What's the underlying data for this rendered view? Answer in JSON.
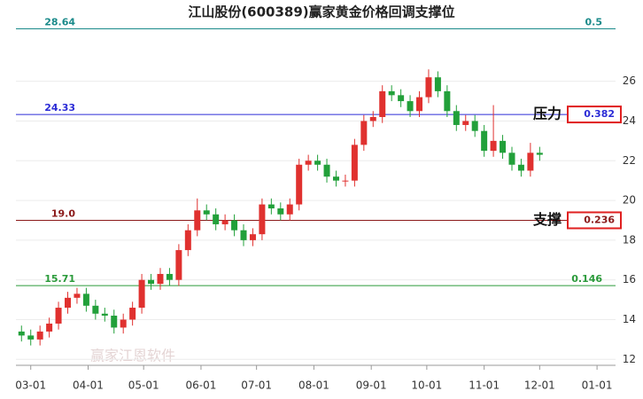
{
  "chart_data": {
    "type": "candlestick",
    "title": "江山股份(600389)赢家黄金价格回调支撑位",
    "watermark": "赢家江恩软件",
    "xlim": [
      -8,
      316
    ],
    "xticks": [
      {
        "value": 0,
        "label": "03-01"
      },
      {
        "value": 31,
        "label": "04-01"
      },
      {
        "value": 61,
        "label": "05-01"
      },
      {
        "value": 92,
        "label": "06-01"
      },
      {
        "value": 122,
        "label": "07-01"
      },
      {
        "value": 153,
        "label": "08-01"
      },
      {
        "value": 184,
        "label": "09-01"
      },
      {
        "value": 214,
        "label": "10-01"
      },
      {
        "value": 245,
        "label": "11-01"
      },
      {
        "value": 275,
        "label": "12-01"
      },
      {
        "value": 306,
        "label": "01-01"
      }
    ],
    "ylim": [
      11.7,
      29.2
    ],
    "yticks": [
      12,
      14,
      16,
      18,
      20,
      22,
      24,
      26
    ],
    "grid": true,
    "up_color": "#e0312f",
    "down_color": "#22a03a",
    "x": [
      -5,
      0,
      5,
      10,
      15,
      20,
      25,
      30,
      35,
      40,
      45,
      50,
      55,
      60,
      65,
      70,
      75,
      80,
      85,
      90,
      95,
      100,
      105,
      110,
      115,
      120,
      125,
      130,
      135,
      140,
      145,
      150,
      155,
      160,
      165,
      170,
      175,
      180,
      185,
      190,
      195,
      200,
      205,
      210,
      215,
      220,
      225,
      230,
      235,
      240,
      245,
      250,
      255,
      260,
      265,
      270,
      275
    ],
    "open": [
      13.4,
      13.2,
      13.0,
      13.4,
      13.8,
      14.6,
      15.1,
      15.3,
      14.7,
      14.3,
      14.2,
      13.6,
      14.0,
      14.6,
      16.0,
      15.8,
      16.3,
      16.0,
      17.5,
      18.5,
      19.5,
      19.3,
      18.8,
      19.0,
      18.5,
      18.0,
      18.3,
      19.8,
      19.6,
      19.3,
      19.8,
      21.8,
      22.0,
      21.8,
      21.2,
      21.0,
      21.0,
      22.8,
      24.0,
      24.2,
      25.5,
      25.3,
      25.0,
      24.5,
      25.2,
      26.2,
      25.5,
      24.5,
      23.8,
      24.0,
      23.5,
      22.5,
      23.0,
      22.4,
      21.8,
      21.5,
      22.4
    ],
    "high": [
      13.7,
      13.5,
      13.7,
      14.1,
      14.9,
      15.4,
      15.6,
      15.6,
      15.0,
      14.6,
      14.5,
      14.3,
      14.9,
      16.3,
      16.3,
      16.6,
      16.6,
      17.8,
      18.8,
      20.1,
      19.8,
      19.6,
      19.3,
      19.3,
      18.8,
      18.6,
      20.1,
      20.1,
      19.9,
      20.1,
      22.1,
      22.3,
      22.3,
      22.1,
      21.5,
      21.3,
      23.1,
      24.3,
      24.5,
      25.8,
      25.8,
      25.6,
      25.3,
      25.5,
      26.6,
      26.5,
      25.8,
      24.8,
      24.3,
      24.3,
      23.8,
      24.8,
      23.3,
      22.7,
      22.1,
      22.9,
      22.7
    ],
    "low": [
      12.9,
      12.7,
      12.7,
      13.1,
      13.5,
      14.3,
      14.8,
      14.4,
      14.0,
      13.9,
      13.3,
      13.3,
      13.7,
      14.3,
      15.5,
      15.5,
      15.7,
      15.7,
      17.2,
      18.2,
      19.0,
      18.5,
      18.5,
      18.2,
      17.7,
      17.7,
      18.0,
      19.3,
      19.0,
      19.0,
      19.5,
      21.5,
      21.5,
      20.9,
      20.7,
      20.7,
      20.7,
      22.5,
      23.7,
      23.9,
      25.0,
      24.7,
      24.2,
      24.2,
      24.9,
      25.2,
      24.2,
      23.5,
      23.5,
      23.2,
      22.2,
      22.2,
      22.1,
      21.5,
      21.2,
      21.2,
      22.0
    ],
    "close": [
      13.2,
      13.0,
      13.4,
      13.8,
      14.6,
      15.1,
      15.3,
      14.7,
      14.3,
      14.2,
      13.6,
      14.0,
      14.6,
      16.0,
      15.8,
      16.3,
      16.0,
      17.5,
      18.5,
      19.5,
      19.3,
      18.8,
      19.0,
      18.5,
      18.0,
      18.3,
      19.8,
      19.6,
      19.3,
      19.8,
      21.8,
      22.0,
      21.8,
      21.2,
      21.0,
      21.0,
      22.8,
      24.0,
      24.2,
      25.5,
      25.3,
      25.0,
      24.5,
      25.2,
      26.2,
      25.5,
      24.5,
      23.8,
      24.0,
      23.5,
      22.5,
      23.0,
      22.4,
      21.8,
      21.5,
      22.4,
      22.3
    ],
    "levels": [
      {
        "value": 28.64,
        "ratio": "0.5",
        "color": "#1a8a8a"
      },
      {
        "value": 24.33,
        "ratio": "0.382",
        "color": "#2b2bd6",
        "tag": "压力",
        "boxed": true
      },
      {
        "value": {
          "value": 19,
          "label": "19.0"
        },
        "ratio": "0.236",
        "color": "#8b1a1a",
        "tag": "支撑",
        "boxed": true
      },
      {
        "value": 15.71,
        "ratio": "0.146",
        "color": "#2a9a3a"
      }
    ]
  }
}
